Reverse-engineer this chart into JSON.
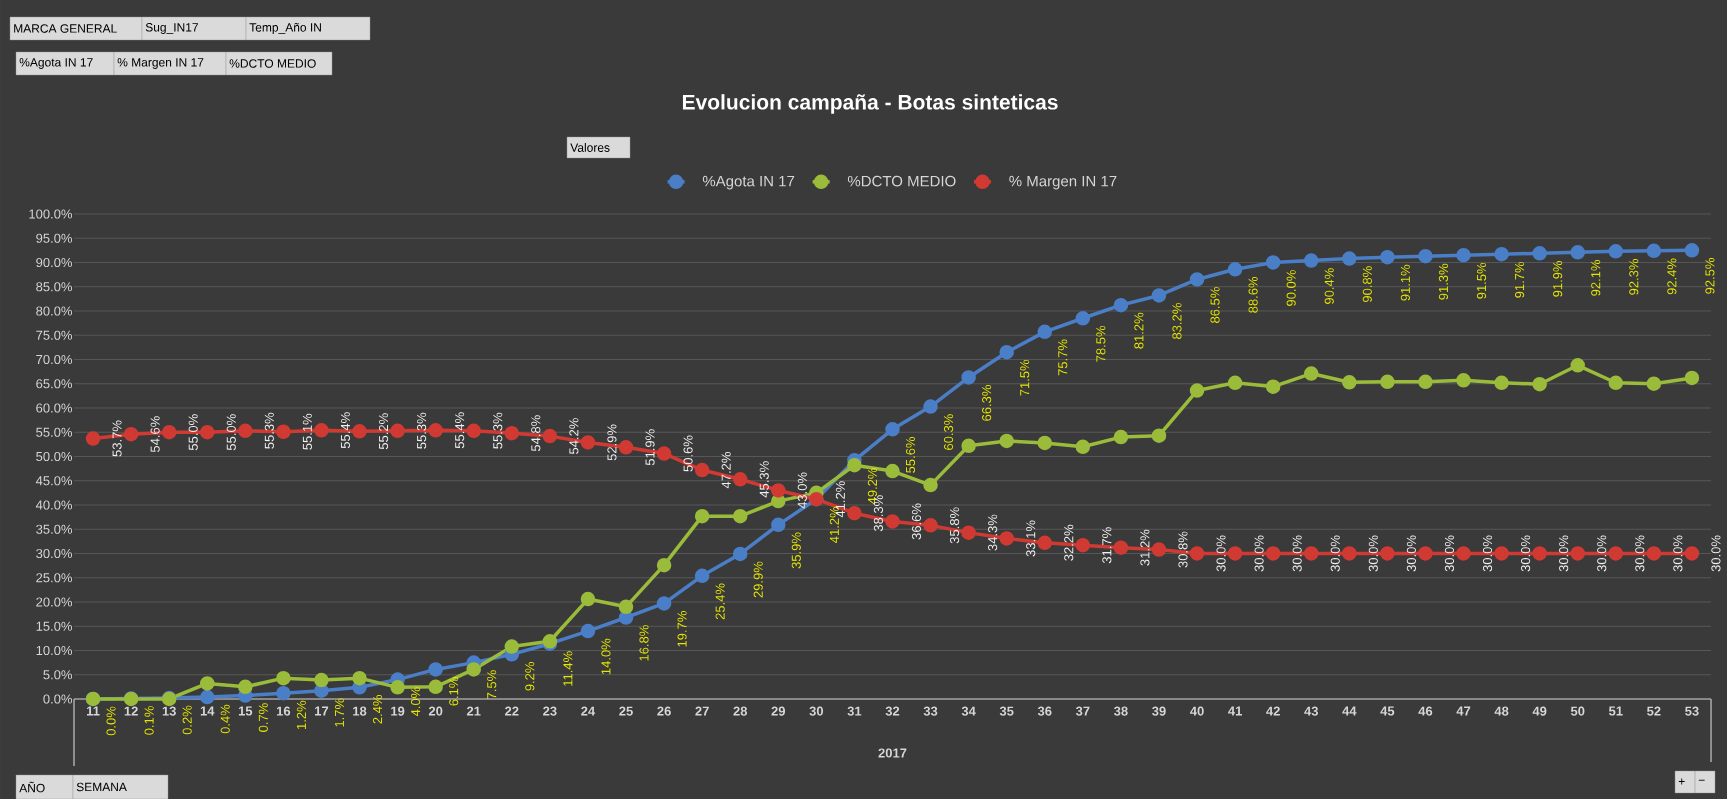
{
  "chart_data": {
    "type": "line",
    "title": "Evolucion campaña - Botas sinteticas",
    "xlabel": "2017",
    "categories": [
      "11",
      "12",
      "13",
      "14",
      "15",
      "16",
      "17",
      "18",
      "19",
      "20",
      "21",
      "22",
      "23",
      "24",
      "25",
      "26",
      "27",
      "28",
      "29",
      "30",
      "31",
      "32",
      "33",
      "34",
      "35",
      "36",
      "37",
      "38",
      "39",
      "40",
      "41",
      "42",
      "43",
      "44",
      "45",
      "46",
      "47",
      "48",
      "49",
      "50",
      "51",
      "52",
      "53"
    ],
    "series": [
      {
        "name": "%Agota IN 17",
        "color": "#4a7fc8",
        "values": [
          0.0,
          0.1,
          0.2,
          0.4,
          0.7,
          1.2,
          1.7,
          2.4,
          4.0,
          6.1,
          7.5,
          9.2,
          11.4,
          14.0,
          16.8,
          19.7,
          25.4,
          29.9,
          35.9,
          41.2,
          49.2,
          55.6,
          60.3,
          66.3,
          71.5,
          75.7,
          78.5,
          81.2,
          83.2,
          86.5,
          88.6,
          90.0,
          90.4,
          90.8,
          91.1,
          91.3,
          91.5,
          91.7,
          91.9,
          92.1,
          92.3,
          92.4,
          92.5
        ],
        "value_labels": [
          "0.0%",
          "0.1%",
          "0.2%",
          "0.4%",
          "0.7%",
          "1.2%",
          "1.7%",
          "2.4%",
          "4.0%",
          "6.1%",
          "7.5%",
          "9.2%",
          "11.4%",
          "14.0%",
          "16.8%",
          "19.7%",
          "25.4%",
          "29.9%",
          "35.9%",
          "41.2%",
          "49.2%",
          "55.6%",
          "60.3%",
          "66.3%",
          "71.5%",
          "75.7%",
          "78.5%",
          "81.2%",
          "83.2%",
          "86.5%",
          "88.6%",
          "90.0%",
          "90.4%",
          "90.8%",
          "91.1%",
          "91.3%",
          "91.5%",
          "91.7%",
          "91.9%",
          "92.1%",
          "92.3%",
          "92.4%",
          "92.5%"
        ]
      },
      {
        "name": "%DCTO MEDIO",
        "color": "#9bbb3b",
        "values": [
          0.0,
          0.0,
          0.0,
          3.2,
          2.5,
          4.3,
          3.9,
          4.3,
          2.4,
          2.5,
          6.1,
          10.8,
          11.9,
          20.6,
          19.0,
          27.6,
          37.7,
          37.7,
          40.8,
          42.5,
          48.2,
          47.0,
          44.1,
          52.2,
          53.2,
          52.8,
          52.0,
          54.0,
          54.3,
          63.6,
          65.2,
          64.4,
          67.1,
          65.3,
          65.4,
          65.4,
          65.7,
          65.2,
          64.9,
          68.8,
          65.2,
          65.0,
          66.2
        ]
      },
      {
        "name": "% Margen IN 17",
        "color": "#d03a33",
        "values": [
          53.7,
          54.6,
          55.0,
          55.0,
          55.3,
          55.1,
          55.4,
          55.2,
          55.3,
          55.4,
          55.3,
          54.8,
          54.2,
          52.9,
          51.9,
          50.6,
          47.2,
          45.3,
          43.0,
          41.2,
          38.3,
          36.6,
          35.8,
          34.3,
          33.1,
          32.2,
          31.7,
          31.2,
          30.8,
          30.0,
          30.0,
          30.0,
          30.0,
          30.0,
          30.0,
          30.0,
          30.0,
          30.0,
          30.0,
          30.0,
          30.0,
          30.0,
          30.0
        ],
        "value_labels": [
          "53.7%",
          "54.6%",
          "55.0%",
          "55.0%",
          "55.3%",
          "55.1%",
          "55.4%",
          "55.2%",
          "55.3%",
          "55.4%",
          "55.3%",
          "54.8%",
          "54.2%",
          "52.9%",
          "51.9%",
          "50.6%",
          "47.2%",
          "45.3%",
          "43.0%",
          "41.2%",
          "38.3%",
          "36.6%",
          "35.8%",
          "34.3%",
          "33.1%",
          "32.2%",
          "31.7%",
          "31.2%",
          "30.8%",
          "30.0%",
          "30.0%",
          "30.0%",
          "30.0%",
          "30.0%",
          "30.0%",
          "30.0%",
          "30.0%",
          "30.0%",
          "30.0%",
          "30.0%",
          "30.0%",
          "30.0%",
          "30.0%"
        ]
      }
    ],
    "ylim": [
      0,
      100
    ],
    "yticks": [
      {
        "value": 0,
        "label": "0.0%"
      },
      {
        "value": 5,
        "label": "5.0%"
      },
      {
        "value": 10,
        "label": "10.0%"
      },
      {
        "value": 15,
        "label": "15.0%"
      },
      {
        "value": 20,
        "label": "20.0%"
      },
      {
        "value": 25,
        "label": "25.0%"
      },
      {
        "value": 30,
        "label": "30.0%"
      },
      {
        "value": 35,
        "label": "35.0%"
      },
      {
        "value": 40,
        "label": "40.0%"
      },
      {
        "value": 45,
        "label": "45.0%"
      },
      {
        "value": 50,
        "label": "50.0%"
      },
      {
        "value": 55,
        "label": "55.0%"
      },
      {
        "value": 60,
        "label": "60.0%"
      },
      {
        "value": 65,
        "label": "65.0%"
      },
      {
        "value": 70,
        "label": "70.0%"
      },
      {
        "value": 75,
        "label": "75.0%"
      },
      {
        "value": 80,
        "label": "80.0%"
      },
      {
        "value": 85,
        "label": "85.0%"
      },
      {
        "value": 90,
        "label": "90.0%"
      },
      {
        "value": 95,
        "label": "95.0%"
      },
      {
        "value": 100,
        "label": "100.0%"
      }
    ],
    "grid": "y",
    "legend": "top",
    "marker": "circle",
    "line_style": "solid",
    "annotations": [
      "MARCA GENERAL",
      "Sug_IN17",
      "Temp_Año IN",
      "%Agota IN 17",
      "% Margen IN 17",
      "%DCTO MEDIO",
      "Valores",
      "AÑO",
      "SEMANA",
      "+",
      "−"
    ]
  }
}
